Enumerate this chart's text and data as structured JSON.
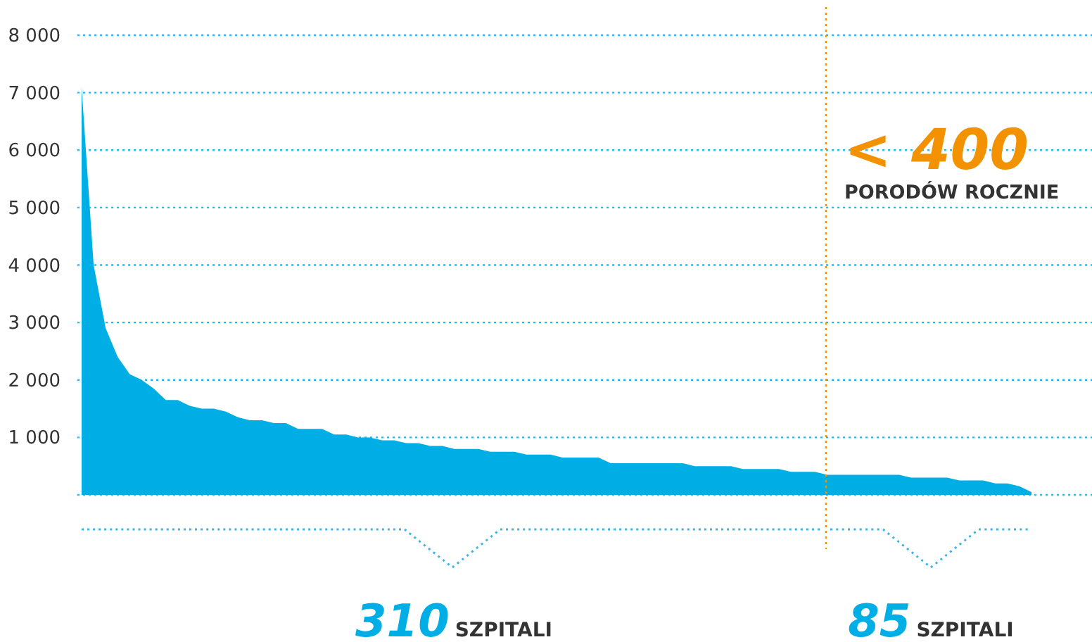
{
  "chart_data": {
    "type": "area",
    "categories": [
      null,
      null,
      null,
      null,
      null,
      null,
      null,
      null,
      null,
      null,
      null,
      null,
      null,
      null,
      null,
      null,
      null,
      null,
      null,
      null,
      null,
      null,
      null,
      null,
      null,
      null,
      null,
      null,
      null,
      null,
      null,
      null,
      null,
      null,
      null,
      null,
      null,
      null,
      null,
      null,
      null,
      null,
      null,
      null,
      null,
      null,
      null,
      null,
      null,
      null,
      null,
      null,
      null,
      null,
      null,
      null,
      null,
      null,
      null,
      null,
      null,
      null,
      null,
      null,
      null,
      null,
      null,
      null,
      null,
      null,
      null,
      null,
      null,
      null,
      null,
      null,
      null,
      null,
      null,
      null
    ],
    "series": [
      {
        "color": "#00aee6",
        "values": [
          7100,
          4000,
          2900,
          2400,
          2100,
          2000,
          1850,
          1650,
          1650,
          1550,
          1500,
          1500,
          1450,
          1350,
          1300,
          1300,
          1250,
          1250,
          1150,
          1150,
          1150,
          1050,
          1050,
          1000,
          1000,
          950,
          950,
          900,
          900,
          850,
          850,
          800,
          800,
          800,
          750,
          750,
          750,
          700,
          700,
          700,
          650,
          650,
          650,
          650,
          550,
          550,
          550,
          550,
          550,
          550,
          550,
          500,
          500,
          500,
          500,
          450,
          450,
          450,
          450,
          400,
          400,
          400,
          350,
          350,
          350,
          350,
          350,
          350,
          350,
          300,
          300,
          300,
          300,
          250,
          250,
          250,
          200,
          200,
          150,
          50
        ]
      }
    ],
    "ylim": [
      0,
      8000
    ],
    "yticks": [
      {
        "value": 1000,
        "label": "1 000"
      },
      {
        "value": 2000,
        "label": "2 000"
      },
      {
        "value": 3000,
        "label": "3 000"
      },
      {
        "value": 4000,
        "label": "4 000"
      },
      {
        "value": 5000,
        "label": "5 000"
      },
      {
        "value": 6000,
        "label": "6 000"
      },
      {
        "value": 7000,
        "label": "7 000"
      },
      {
        "value": 8000,
        "label": "8 000"
      }
    ],
    "tick_labels": "y",
    "grid": "y",
    "annotations": [
      "< 400",
      "PORODÓW ROCZNIE",
      "310",
      "SZPITALI",
      "85",
      "SZPITALI"
    ]
  }
}
